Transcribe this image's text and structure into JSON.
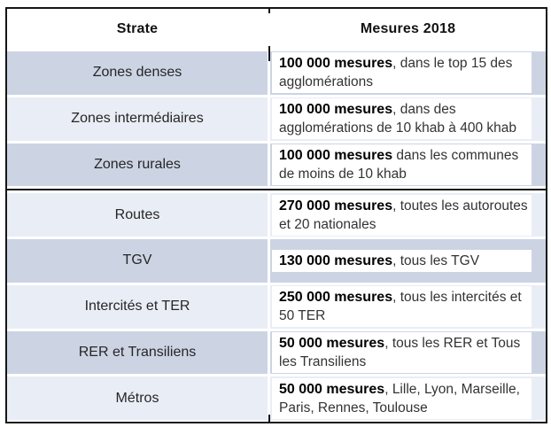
{
  "table": {
    "header": {
      "strate": "Strate",
      "mesures": "Mesures 2018"
    },
    "rows": [
      {
        "strate": "Zones denses",
        "bold": "100 000 mesures",
        "rest": ", dans le top 15 des agglomérations",
        "shade": "medium",
        "divider_after": false
      },
      {
        "strate": "Zones intermédiaires",
        "bold": "100 000 mesures",
        "rest": ", dans des agglomérations de 10 khab à 400 khab",
        "shade": "light",
        "divider_after": false
      },
      {
        "strate": "Zones rurales",
        "bold": "100 000 mesures",
        "rest": " dans les communes de moins de 10 khab",
        "shade": "medium",
        "divider_after": true
      },
      {
        "strate": "Routes",
        "bold": "270 000 mesures",
        "rest": ", toutes les autoroutes et 20 nationales",
        "shade": "light",
        "divider_after": false
      },
      {
        "strate": "TGV",
        "bold": "130 000 mesures",
        "rest": ", tous les TGV",
        "shade": "medium",
        "divider_after": false
      },
      {
        "strate": "Intercités et TER",
        "bold": "250 000 mesures",
        "rest": ", tous les intercités et 50 TER",
        "shade": "light",
        "divider_after": false
      },
      {
        "strate": "RER et Transiliens",
        "bold": "50 000 mesures",
        "rest": ", tous les RER et Tous les Transiliens",
        "shade": "medium",
        "divider_after": false
      },
      {
        "strate": "Métros",
        "bold": "50 000 mesures",
        "rest": ", Lille, Lyon, Marseille, Paris, Rennes, Toulouse",
        "shade": "light",
        "divider_after": false
      }
    ],
    "colors": {
      "shade_medium": "#ccd4e4",
      "shade_light": "#e9edf5",
      "border": "#151515",
      "paragraph_bg": "#ffffff"
    }
  }
}
